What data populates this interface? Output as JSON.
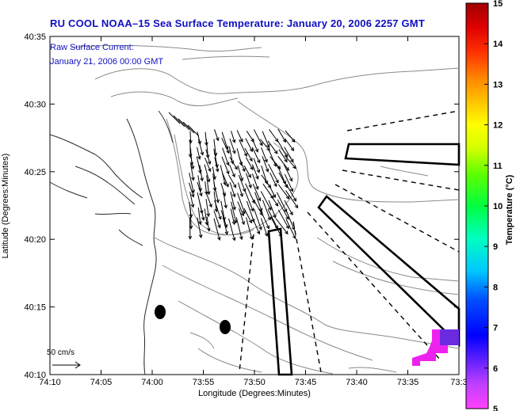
{
  "title": "RU COOL  NOAA–15  Sea Surface Temperature:  January 20, 2006 2257 GMT",
  "current_label": "Raw Surface Current:",
  "current_time": "January 21, 2006 00:00 GMT",
  "scale_label": "50 cm/s",
  "xlabel": "Longitude (Degrees:Minutes)",
  "ylabel": "Latitude (Degrees:Minutes)",
  "colorbar_label": "Temperature (°C)",
  "x_ticks": [
    "74:10",
    "74:05",
    "74:00",
    "73:55",
    "73:50",
    "73:45",
    "73:40",
    "73:35",
    "73:3"
  ],
  "y_ticks": [
    "40:35",
    "40:30",
    "40:25",
    "40:20",
    "40:15",
    "40:10"
  ],
  "colorbar_ticks": [
    "15",
    "14",
    "13",
    "12",
    "11",
    "10",
    "9",
    "8",
    "7",
    "6",
    "5"
  ],
  "colors": {
    "title_text": "#1010c0",
    "sst_patch": "#ee22ee",
    "sst_patch_cool": "#6a2be0"
  }
}
